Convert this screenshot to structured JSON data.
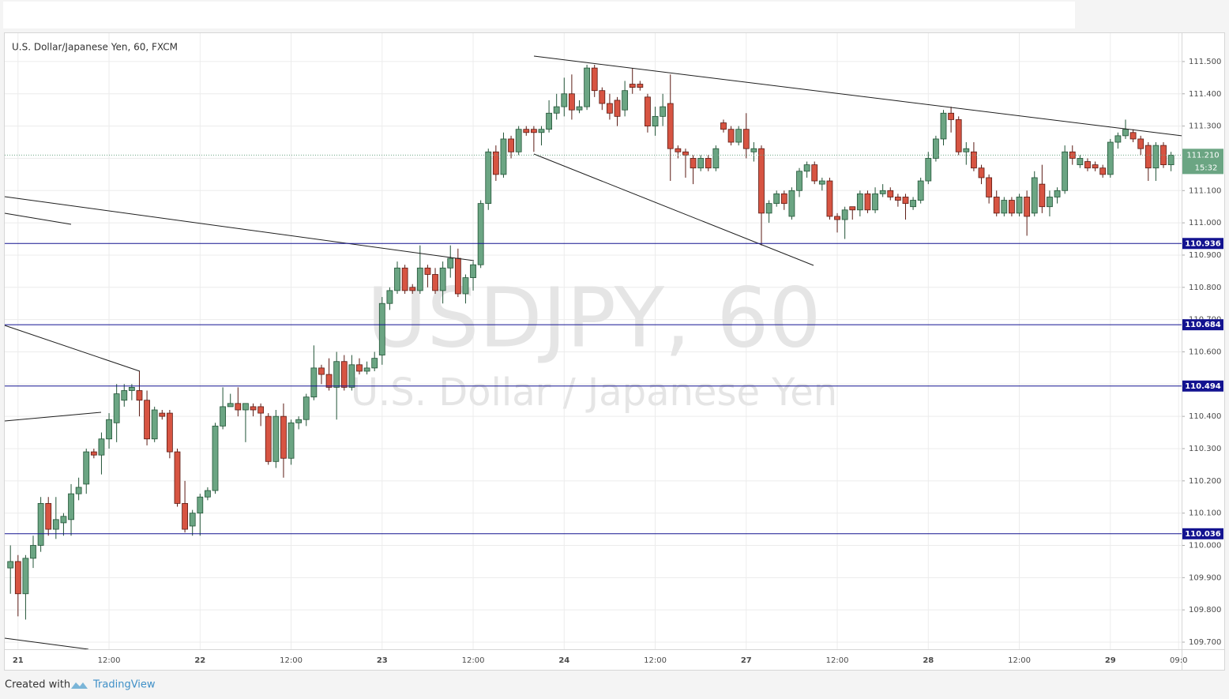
{
  "chart_data": {
    "type": "candlestick",
    "title": "U.S. Dollar/Japanese Yen, 60, FXCM",
    "watermark": "USDJPY, 60",
    "watermark_subtitle": "U.S. Dollar / Japanese Yen",
    "categories": [
      null,
      "21",
      null,
      null,
      null,
      null,
      null,
      null,
      null,
      null,
      null,
      null,
      null,
      "12:00",
      null,
      null,
      null,
      null,
      null,
      null,
      null,
      null,
      null,
      null,
      null,
      "22",
      null,
      null,
      null,
      null,
      null,
      null,
      null,
      null,
      null,
      null,
      null,
      "12:00",
      null,
      null,
      null,
      null,
      null,
      null,
      null,
      null,
      null,
      null,
      null,
      "23",
      null,
      null,
      null,
      null,
      null,
      null,
      null,
      null,
      null,
      null,
      null,
      "12:00",
      null,
      null,
      null,
      null,
      null,
      null,
      null,
      null,
      null,
      null,
      null,
      "24",
      null,
      null,
      null,
      null,
      null,
      null,
      null,
      null,
      null,
      null,
      null,
      "12:00",
      null,
      null,
      null,
      null,
      null,
      null,
      null,
      null,
      null,
      null,
      null,
      "27",
      null,
      null,
      null,
      null,
      null,
      null,
      null,
      null,
      null,
      null,
      null,
      "12:00",
      null,
      null,
      null,
      null,
      null,
      null,
      null,
      null,
      null,
      null,
      null,
      "28",
      null,
      null,
      null,
      null,
      null,
      null,
      null,
      null,
      null,
      null,
      null,
      "12:00",
      null,
      null,
      null,
      null,
      null,
      null,
      null,
      null,
      null,
      null,
      null,
      "29",
      null,
      null,
      null,
      null,
      null,
      null,
      null,
      null,
      "09:0"
    ],
    "open": [
      109.93,
      109.95,
      109.85,
      109.96,
      110.0,
      110.13,
      110.05,
      110.07,
      110.08,
      110.16,
      110.19,
      110.29,
      110.28,
      110.33,
      110.38,
      110.45,
      110.48,
      110.48,
      110.45,
      110.33,
      110.41,
      110.41,
      110.29,
      110.13,
      110.06,
      110.1,
      110.15,
      110.17,
      110.37,
      110.43,
      110.44,
      110.42,
      110.43,
      110.43,
      110.4,
      110.26,
      110.4,
      110.27,
      110.38,
      110.39,
      110.46,
      110.55,
      110.53,
      110.49,
      110.57,
      110.49,
      110.56,
      110.54,
      110.55,
      110.59,
      110.75,
      110.79,
      110.86,
      110.8,
      110.79,
      110.86,
      110.84,
      110.79,
      110.86,
      110.89,
      110.78,
      110.83,
      110.87,
      111.06,
      111.22,
      111.15,
      111.26,
      111.22,
      111.29,
      111.29,
      111.28,
      111.29,
      111.34,
      111.36,
      111.4,
      111.35,
      111.36,
      111.48,
      111.41,
      111.37,
      111.38,
      111.35,
      111.43,
      111.43,
      111.39,
      111.3,
      111.33,
      111.37,
      111.23,
      111.22,
      111.2,
      111.17,
      111.2,
      111.17,
      111.31,
      111.29,
      111.25,
      111.29,
      111.22,
      111.23,
      111.03,
      111.06,
      111.09,
      111.02,
      111.1,
      111.16,
      111.18,
      111.12,
      111.13,
      111.02,
      111.01,
      111.05,
      111.04,
      111.09,
      111.04,
      111.09,
      111.1,
      111.08,
      111.08,
      111.05,
      111.07,
      111.13,
      111.2,
      111.26,
      111.34,
      111.32,
      111.22,
      111.22,
      111.17,
      111.14,
      111.08,
      111.03,
      111.07,
      111.03,
      111.08,
      111.03,
      111.12,
      111.05,
      111.08,
      111.1,
      111.22,
      111.18,
      111.19,
      111.18,
      111.17,
      111.15,
      111.25,
      111.27,
      111.28,
      111.26,
      111.24,
      111.17,
      111.24,
      111.18,
      null
    ],
    "high": [
      110.0,
      109.97,
      109.97,
      110.03,
      110.15,
      110.15,
      110.15,
      110.1,
      110.19,
      110.21,
      110.3,
      110.3,
      110.35,
      110.41,
      110.5,
      110.5,
      110.5,
      110.54,
      110.48,
      110.43,
      110.42,
      110.42,
      110.3,
      110.2,
      110.11,
      110.16,
      110.18,
      110.38,
      110.49,
      110.47,
      110.49,
      110.44,
      110.44,
      110.44,
      110.41,
      110.42,
      110.44,
      110.39,
      110.4,
      110.47,
      110.62,
      110.56,
      110.58,
      110.6,
      110.59,
      110.59,
      110.58,
      110.57,
      110.6,
      110.77,
      110.8,
      110.88,
      110.87,
      110.81,
      110.93,
      110.87,
      110.86,
      110.88,
      110.93,
      110.92,
      110.84,
      110.88,
      111.07,
      111.23,
      111.24,
      111.28,
      111.27,
      111.3,
      111.3,
      111.3,
      111.3,
      111.38,
      111.4,
      111.45,
      111.46,
      111.38,
      111.49,
      111.49,
      111.42,
      111.4,
      111.39,
      111.44,
      111.48,
      111.44,
      111.4,
      111.36,
      111.4,
      111.46,
      111.24,
      111.23,
      111.21,
      111.21,
      111.21,
      111.24,
      111.32,
      111.3,
      111.3,
      111.34,
      111.25,
      111.24,
      111.07,
      111.1,
      111.1,
      111.11,
      111.17,
      111.19,
      111.19,
      111.14,
      111.14,
      111.03,
      111.05,
      111.05,
      111.1,
      111.1,
      111.11,
      111.12,
      111.11,
      111.09,
      111.09,
      111.08,
      111.14,
      111.22,
      111.27,
      111.35,
      111.36,
      111.33,
      111.25,
      111.25,
      111.18,
      111.15,
      111.1,
      111.08,
      111.08,
      111.09,
      111.1,
      111.16,
      111.18,
      111.1,
      111.11,
      111.24,
      111.24,
      111.21,
      111.2,
      111.19,
      111.18,
      111.26,
      111.28,
      111.32,
      111.29,
      111.27,
      111.25,
      111.25,
      111.25,
      111.22,
      null
    ],
    "low": [
      109.85,
      109.78,
      109.77,
      109.93,
      109.98,
      110.03,
      110.02,
      110.03,
      110.03,
      110.14,
      110.16,
      110.27,
      110.22,
      110.3,
      110.32,
      110.43,
      110.45,
      110.4,
      110.31,
      110.32,
      110.39,
      110.27,
      110.12,
      110.04,
      110.03,
      110.03,
      110.14,
      110.16,
      110.36,
      110.43,
      110.4,
      110.32,
      110.4,
      110.37,
      110.25,
      110.24,
      110.21,
      110.25,
      110.36,
      110.37,
      110.45,
      110.5,
      110.48,
      110.39,
      110.48,
      110.48,
      110.53,
      110.53,
      110.54,
      110.56,
      110.73,
      110.78,
      110.78,
      110.78,
      110.78,
      110.8,
      110.78,
      110.75,
      110.83,
      110.77,
      110.75,
      110.79,
      110.86,
      111.04,
      111.13,
      111.14,
      111.2,
      111.21,
      111.27,
      111.22,
      111.24,
      111.28,
      111.32,
      111.33,
      111.32,
      111.34,
      111.35,
      111.39,
      111.35,
      111.32,
      111.3,
      111.33,
      111.4,
      111.41,
      111.28,
      111.27,
      111.3,
      111.13,
      111.2,
      111.14,
      111.12,
      111.16,
      111.16,
      111.16,
      111.28,
      111.24,
      111.24,
      111.2,
      111.19,
      110.93,
      111.0,
      111.05,
      111.04,
      111.01,
      111.08,
      111.14,
      111.12,
      111.1,
      111.01,
      110.97,
      110.95,
      111.01,
      111.02,
      111.03,
      111.03,
      111.08,
      111.07,
      111.05,
      111.01,
      111.04,
      111.06,
      111.12,
      111.19,
      111.24,
      111.28,
      111.21,
      111.18,
      111.16,
      111.12,
      111.06,
      111.02,
      111.02,
      111.02,
      111.02,
      110.96,
      111.02,
      111.03,
      111.02,
      111.06,
      111.09,
      111.18,
      111.17,
      111.16,
      111.16,
      111.14,
      111.14,
      111.23,
      111.26,
      111.25,
      111.21,
      111.13,
      111.13,
      111.17,
      111.16,
      null
    ],
    "close": [
      109.95,
      109.85,
      109.96,
      110.0,
      110.13,
      110.05,
      110.08,
      110.09,
      110.16,
      110.18,
      110.29,
      110.28,
      110.33,
      110.39,
      110.47,
      110.48,
      110.49,
      110.45,
      110.33,
      110.42,
      110.4,
      110.29,
      110.13,
      110.05,
      110.1,
      110.15,
      110.17,
      110.37,
      110.43,
      110.44,
      110.42,
      110.44,
      110.42,
      110.41,
      110.26,
      110.4,
      110.27,
      110.38,
      110.39,
      110.46,
      110.55,
      110.53,
      110.49,
      110.57,
      110.49,
      110.56,
      110.54,
      110.55,
      110.58,
      110.75,
      110.79,
      110.86,
      110.79,
      110.79,
      110.86,
      110.84,
      110.79,
      110.86,
      110.89,
      110.78,
      110.83,
      110.87,
      111.06,
      111.22,
      111.15,
      111.26,
      111.22,
      111.29,
      111.28,
      111.28,
      111.29,
      111.34,
      111.36,
      111.4,
      111.35,
      111.36,
      111.48,
      111.41,
      111.37,
      111.34,
      111.33,
      111.41,
      111.42,
      111.42,
      111.3,
      111.33,
      111.36,
      111.23,
      111.22,
      111.21,
      111.17,
      111.2,
      111.17,
      111.23,
      111.29,
      111.25,
      111.29,
      111.23,
      111.23,
      111.03,
      111.06,
      111.09,
      111.06,
      111.1,
      111.16,
      111.18,
      111.13,
      111.13,
      111.02,
      111.01,
      111.04,
      111.04,
      111.09,
      111.04,
      111.09,
      111.1,
      111.08,
      111.07,
      111.06,
      111.07,
      111.13,
      111.2,
      111.26,
      111.34,
      111.32,
      111.22,
      111.23,
      111.17,
      111.14,
      111.08,
      111.03,
      111.07,
      111.03,
      111.08,
      111.02,
      111.14,
      111.05,
      111.08,
      111.1,
      111.22,
      111.2,
      111.2,
      111.17,
      111.17,
      111.15,
      111.25,
      111.27,
      111.29,
      111.26,
      111.23,
      111.17,
      111.24,
      111.18,
      111.21,
      null
    ],
    "up_color": "#6ba583",
    "down_color": "#d75442",
    "ylim": [
      109.678,
      111.588
    ],
    "yticks": [
      {
        "value": 109.7,
        "label": "109.700"
      },
      {
        "value": 109.8,
        "label": "109.800"
      },
      {
        "value": 109.9,
        "label": "109.900"
      },
      {
        "value": 110.0,
        "label": "110.000"
      },
      {
        "value": 110.1,
        "label": "110.100"
      },
      {
        "value": 110.2,
        "label": "110.200"
      },
      {
        "value": 110.3,
        "label": "110.300"
      },
      {
        "value": 110.4,
        "label": "110.400"
      },
      {
        "value": 110.5,
        "label": "110.500"
      },
      {
        "value": 110.6,
        "label": "110.600"
      },
      {
        "value": 110.7,
        "label": "110.700"
      },
      {
        "value": 110.8,
        "label": "110.800"
      },
      {
        "value": 110.9,
        "label": "110.900"
      },
      {
        "value": 111.0,
        "label": "111.000"
      },
      {
        "value": 111.1,
        "label": "111.100"
      },
      {
        "value": 111.2,
        "label": "111.200"
      },
      {
        "value": 111.3,
        "label": "111.300"
      },
      {
        "value": 111.4,
        "label": "111.400"
      },
      {
        "value": 111.5,
        "label": "111.500"
      }
    ],
    "grid": true,
    "levels": [
      110.936,
      110.684,
      110.494,
      110.036
    ],
    "level_color": "#131390",
    "last_price": {
      "value": 111.21,
      "label": "111.210"
    },
    "countdown": "15:32"
  },
  "footer": {
    "text": "Created with",
    "brand": "TradingView"
  }
}
